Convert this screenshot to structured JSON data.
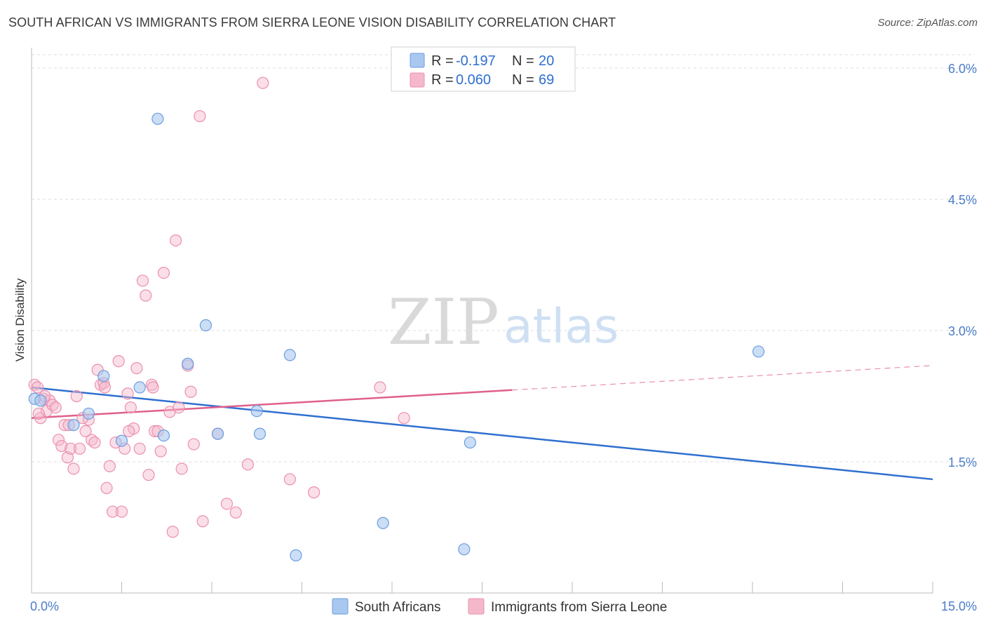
{
  "header": {
    "title": "SOUTH AFRICAN VS IMMIGRANTS FROM SIERRA LEONE VISION DISABILITY CORRELATION CHART",
    "source": "Source: ZipAtlas.com"
  },
  "watermark": {
    "zip": "ZIP",
    "atlas": "atlas"
  },
  "colors": {
    "blue_fill": "#a9c8ef",
    "blue_stroke": "#6b9de0",
    "blue_line": "#2f6fd0",
    "pink_fill": "#f5b8cb",
    "pink_stroke": "#ec8fae",
    "pink_line": "#e0608c",
    "tick_text": "#4a7cc9",
    "grid": "#dddddd"
  },
  "legend": {
    "rows": [
      {
        "r_label": "R = ",
        "r_value": "-0.197",
        "n_label": "N = ",
        "n_value": "20",
        "swatch": "blue"
      },
      {
        "r_label": "R = ",
        "r_value": "0.060",
        "n_label": "N = ",
        "n_value": "69",
        "swatch": "pink"
      }
    ]
  },
  "bottom_legend": {
    "items": [
      {
        "label": "South Africans",
        "swatch": "blue"
      },
      {
        "label": "Immigrants from Sierra Leone",
        "swatch": "pink"
      }
    ]
  },
  "chart_data": {
    "type": "scatter",
    "title": "SOUTH AFRICAN VS IMMIGRANTS FROM SIERRA LEONE VISION DISABILITY CORRELATION CHART",
    "xlabel": "",
    "ylabel": "Vision Disability",
    "xlim": [
      0,
      15
    ],
    "ylim": [
      0,
      6.2
    ],
    "x_tick_labels": [
      "0.0%",
      "15.0%"
    ],
    "y_ticks": [
      1.5,
      3.0,
      4.5,
      6.0
    ],
    "y_tick_labels": [
      "1.5%",
      "3.0%",
      "4.5%",
      "6.0%"
    ],
    "grid": true,
    "legend_placement": "top-center",
    "series": [
      {
        "name": "South Africans",
        "color": "blue",
        "points": [
          [
            0.05,
            2.22
          ],
          [
            0.7,
            1.92
          ],
          [
            0.95,
            2.05
          ],
          [
            1.2,
            2.48
          ],
          [
            1.5,
            1.74
          ],
          [
            1.8,
            2.35
          ],
          [
            2.1,
            5.42
          ],
          [
            2.2,
            1.8
          ],
          [
            2.6,
            2.62
          ],
          [
            2.9,
            3.06
          ],
          [
            3.1,
            1.82
          ],
          [
            3.75,
            2.08
          ],
          [
            3.8,
            1.82
          ],
          [
            4.3,
            2.72
          ],
          [
            4.4,
            0.43
          ],
          [
            5.85,
            0.8
          ],
          [
            7.2,
            0.5
          ],
          [
            7.3,
            1.72
          ],
          [
            12.1,
            2.76
          ],
          [
            0.15,
            2.2
          ]
        ],
        "trend": {
          "x": [
            0,
            15
          ],
          "y": [
            2.35,
            1.3
          ]
        }
      },
      {
        "name": "Immigrants from Sierra Leone",
        "color": "pink",
        "points": [
          [
            0.05,
            2.38
          ],
          [
            0.1,
            2.35
          ],
          [
            0.15,
            2.0
          ],
          [
            0.2,
            2.22
          ],
          [
            0.25,
            2.08
          ],
          [
            0.3,
            2.2
          ],
          [
            0.35,
            2.15
          ],
          [
            0.4,
            2.12
          ],
          [
            0.45,
            1.75
          ],
          [
            0.5,
            1.68
          ],
          [
            0.55,
            1.92
          ],
          [
            0.6,
            1.55
          ],
          [
            0.65,
            1.65
          ],
          [
            0.7,
            1.42
          ],
          [
            0.75,
            2.25
          ],
          [
            0.8,
            1.65
          ],
          [
            0.9,
            1.85
          ],
          [
            0.95,
            1.98
          ],
          [
            1.0,
            1.75
          ],
          [
            1.05,
            1.72
          ],
          [
            1.1,
            2.55
          ],
          [
            1.15,
            2.38
          ],
          [
            1.2,
            2.4
          ],
          [
            1.25,
            1.2
          ],
          [
            1.3,
            1.45
          ],
          [
            1.35,
            0.93
          ],
          [
            1.4,
            1.72
          ],
          [
            1.45,
            2.65
          ],
          [
            1.5,
            0.93
          ],
          [
            1.55,
            1.65
          ],
          [
            1.6,
            2.28
          ],
          [
            1.65,
            2.12
          ],
          [
            1.7,
            1.88
          ],
          [
            1.75,
            2.57
          ],
          [
            1.8,
            1.65
          ],
          [
            1.85,
            3.57
          ],
          [
            1.9,
            3.4
          ],
          [
            1.95,
            1.35
          ],
          [
            2.0,
            2.38
          ],
          [
            2.05,
            1.85
          ],
          [
            2.1,
            1.85
          ],
          [
            2.15,
            1.62
          ],
          [
            2.2,
            3.66
          ],
          [
            2.3,
            2.07
          ],
          [
            2.35,
            0.7
          ],
          [
            2.4,
            4.03
          ],
          [
            2.45,
            2.12
          ],
          [
            2.5,
            1.42
          ],
          [
            2.6,
            2.6
          ],
          [
            2.65,
            2.3
          ],
          [
            2.7,
            1.7
          ],
          [
            2.8,
            5.45
          ],
          [
            2.85,
            0.82
          ],
          [
            3.1,
            1.82
          ],
          [
            3.25,
            1.02
          ],
          [
            3.4,
            0.92
          ],
          [
            3.6,
            1.47
          ],
          [
            3.85,
            5.83
          ],
          [
            4.3,
            1.3
          ],
          [
            4.7,
            1.15
          ],
          [
            5.8,
            2.35
          ],
          [
            6.2,
            2.0
          ],
          [
            0.12,
            2.05
          ],
          [
            0.22,
            2.25
          ],
          [
            0.62,
            1.92
          ],
          [
            0.85,
            2.0
          ],
          [
            1.22,
            2.35
          ],
          [
            1.62,
            1.85
          ],
          [
            2.02,
            2.35
          ]
        ],
        "trend": {
          "x": [
            0,
            8.0
          ],
          "y": [
            2.0,
            2.32
          ]
        },
        "trend_dashed": {
          "x": [
            8.0,
            15
          ],
          "y": [
            2.32,
            2.6
          ]
        }
      }
    ]
  }
}
